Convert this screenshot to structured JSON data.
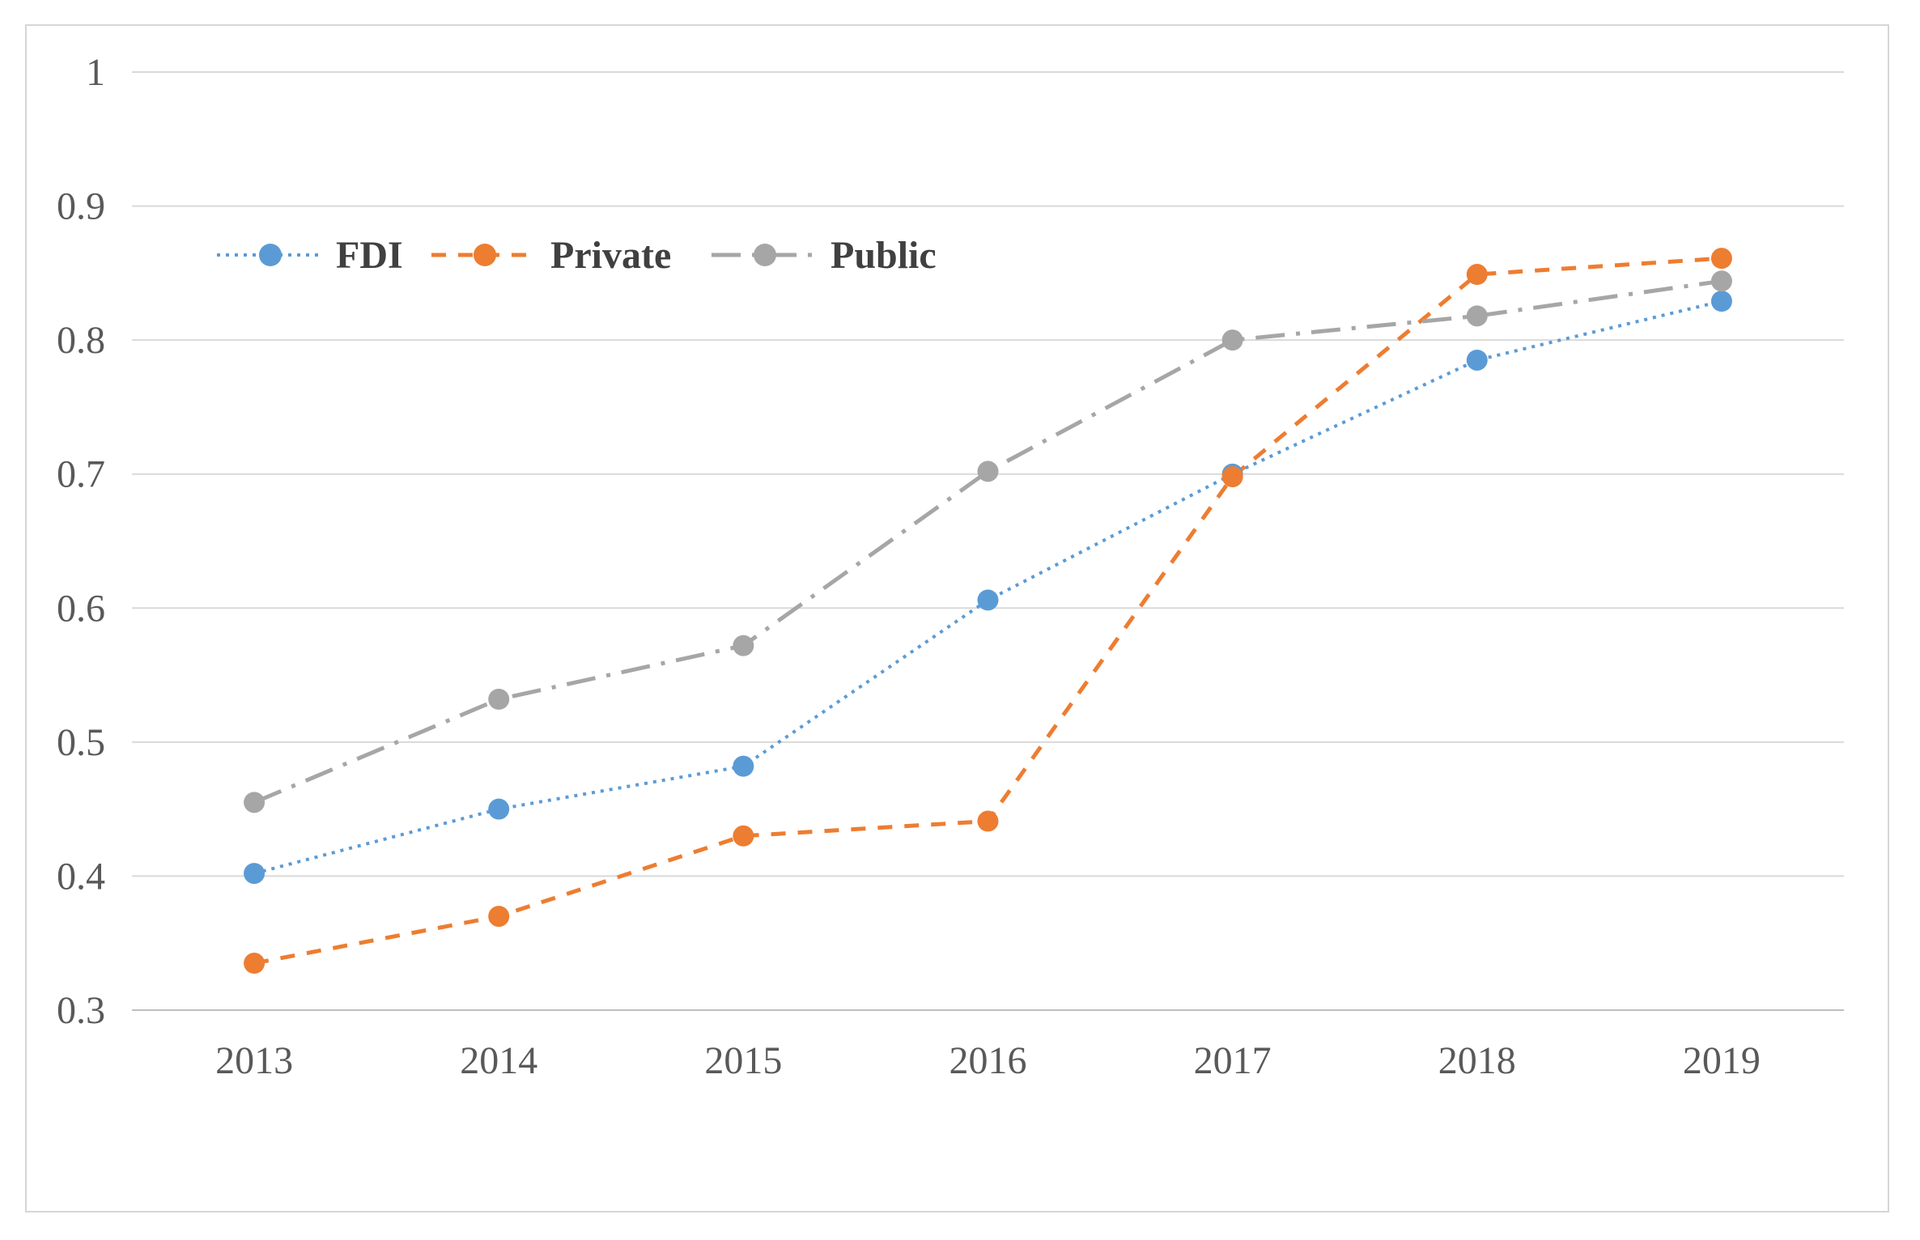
{
  "chart_data": {
    "type": "line",
    "title": "",
    "xlabel": "",
    "ylabel": "",
    "categories": [
      "2013",
      "2014",
      "2015",
      "2016",
      "2017",
      "2018",
      "2019"
    ],
    "series": [
      {
        "name": "FDI",
        "color": "#5B9BD5",
        "line_style": "dotted",
        "values": [
          0.402,
          0.45,
          0.482,
          0.606,
          0.7,
          0.785,
          0.829
        ]
      },
      {
        "name": "Private",
        "color": "#ED7D31",
        "line_style": "dashed",
        "values": [
          0.335,
          0.37,
          0.43,
          0.441,
          0.698,
          0.849,
          0.861
        ]
      },
      {
        "name": "Public",
        "color": "#A6A6A6",
        "line_style": "dash-dot",
        "values": [
          0.455,
          0.532,
          0.572,
          0.702,
          0.8,
          0.818,
          0.844
        ]
      }
    ],
    "ylim": [
      0.3,
      1.0
    ],
    "ytick_step": 0.1,
    "ytick_labels": [
      "0.3",
      "0.4",
      "0.5",
      "0.6",
      "0.7",
      "0.8",
      "0.9",
      "1"
    ],
    "grid": true,
    "legend_position": "inside-top-left",
    "marker": "circle"
  },
  "colors": {
    "background": "#FFFFFF",
    "chart_border": "#D6D6D6",
    "gridline": "#D9D9D9",
    "axis_line": "#BFBFBF",
    "tick_text": "#595959",
    "legend_text": "#404040"
  }
}
